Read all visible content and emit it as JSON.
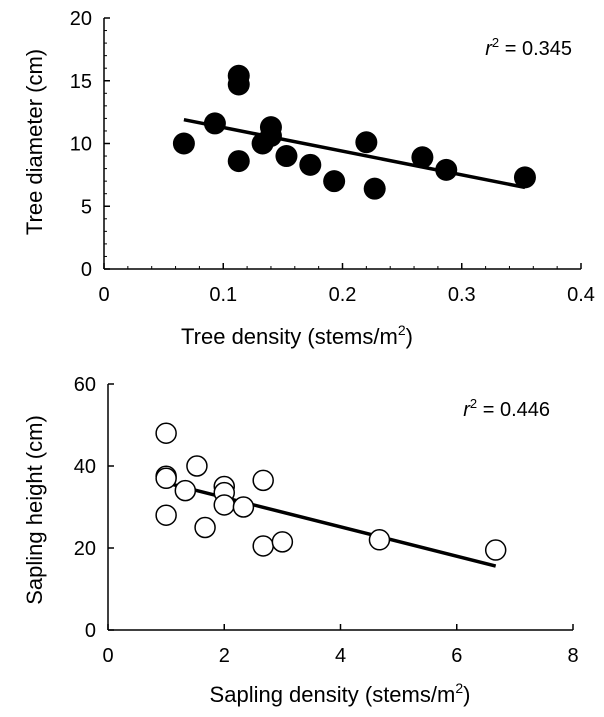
{
  "chart_data": [
    {
      "type": "scatter",
      "xlabel": "Tree density (stems/m2)",
      "xlabel_parts": {
        "base": "Tree density (stems/m",
        "sup": "2",
        "end": ")"
      },
      "ylabel": "Tree diameter (cm)",
      "xlim": [
        0,
        0.4
      ],
      "ylim": [
        0,
        20
      ],
      "xticks": [
        0,
        0.1,
        0.2,
        0.3,
        0.4
      ],
      "xtick_labels": [
        "0",
        "0.1",
        "0.2",
        "0.3",
        "0.4"
      ],
      "yticks": [
        0,
        5,
        10,
        15,
        20
      ],
      "ytick_labels": [
        "0",
        "5",
        "10",
        "15",
        "20"
      ],
      "grid": false,
      "marker": "filled-circle",
      "marker_color": "#000000",
      "annotation": {
        "r": "r",
        "sup": "2",
        "rest": " = 0.345"
      },
      "points": [
        {
          "x": 0.067,
          "y": 10.0
        },
        {
          "x": 0.093,
          "y": 11.6
        },
        {
          "x": 0.113,
          "y": 15.4
        },
        {
          "x": 0.113,
          "y": 14.7
        },
        {
          "x": 0.113,
          "y": 8.6
        },
        {
          "x": 0.133,
          "y": 10.0
        },
        {
          "x": 0.14,
          "y": 11.3
        },
        {
          "x": 0.14,
          "y": 10.6
        },
        {
          "x": 0.153,
          "y": 9.0
        },
        {
          "x": 0.173,
          "y": 8.3
        },
        {
          "x": 0.193,
          "y": 7.0
        },
        {
          "x": 0.22,
          "y": 10.1
        },
        {
          "x": 0.227,
          "y": 6.4
        },
        {
          "x": 0.267,
          "y": 8.9
        },
        {
          "x": 0.287,
          "y": 7.9
        },
        {
          "x": 0.353,
          "y": 7.3
        }
      ],
      "trendline": {
        "x": [
          0.067,
          0.353
        ],
        "y": [
          11.9,
          6.5
        ]
      }
    },
    {
      "type": "scatter",
      "xlabel": "Sapling density (stems/m2)",
      "xlabel_parts": {
        "base": "Sapling density (stems/m",
        "sup": "2",
        "end": ")"
      },
      "ylabel": "Sapling height (cm)",
      "xlim": [
        0,
        8
      ],
      "ylim": [
        0,
        60
      ],
      "xticks": [
        0,
        2,
        4,
        6,
        8
      ],
      "xtick_labels": [
        "0",
        "2",
        "4",
        "6",
        "8"
      ],
      "yticks": [
        0,
        20,
        40,
        60
      ],
      "ytick_labels": [
        "0",
        "20",
        "40",
        "60"
      ],
      "grid": false,
      "marker": "open-circle",
      "marker_color": "#000000",
      "annotation": {
        "r": "r",
        "sup": "2",
        "rest": " = 0.446"
      },
      "points": [
        {
          "x": 1.0,
          "y": 48.0
        },
        {
          "x": 1.0,
          "y": 37.5
        },
        {
          "x": 1.0,
          "y": 37.0
        },
        {
          "x": 1.0,
          "y": 28.0
        },
        {
          "x": 1.33,
          "y": 34.0
        },
        {
          "x": 1.53,
          "y": 40.0
        },
        {
          "x": 1.67,
          "y": 25.0
        },
        {
          "x": 2.0,
          "y": 35.0
        },
        {
          "x": 2.0,
          "y": 33.5
        },
        {
          "x": 2.0,
          "y": 30.5
        },
        {
          "x": 2.33,
          "y": 30.0
        },
        {
          "x": 2.67,
          "y": 36.5
        },
        {
          "x": 2.67,
          "y": 20.5
        },
        {
          "x": 3.0,
          "y": 21.5
        },
        {
          "x": 4.67,
          "y": 22.0
        },
        {
          "x": 6.67,
          "y": 19.5
        }
      ],
      "trendline": {
        "x": [
          1.0,
          6.67
        ],
        "y": [
          35.9,
          15.6
        ]
      }
    }
  ]
}
